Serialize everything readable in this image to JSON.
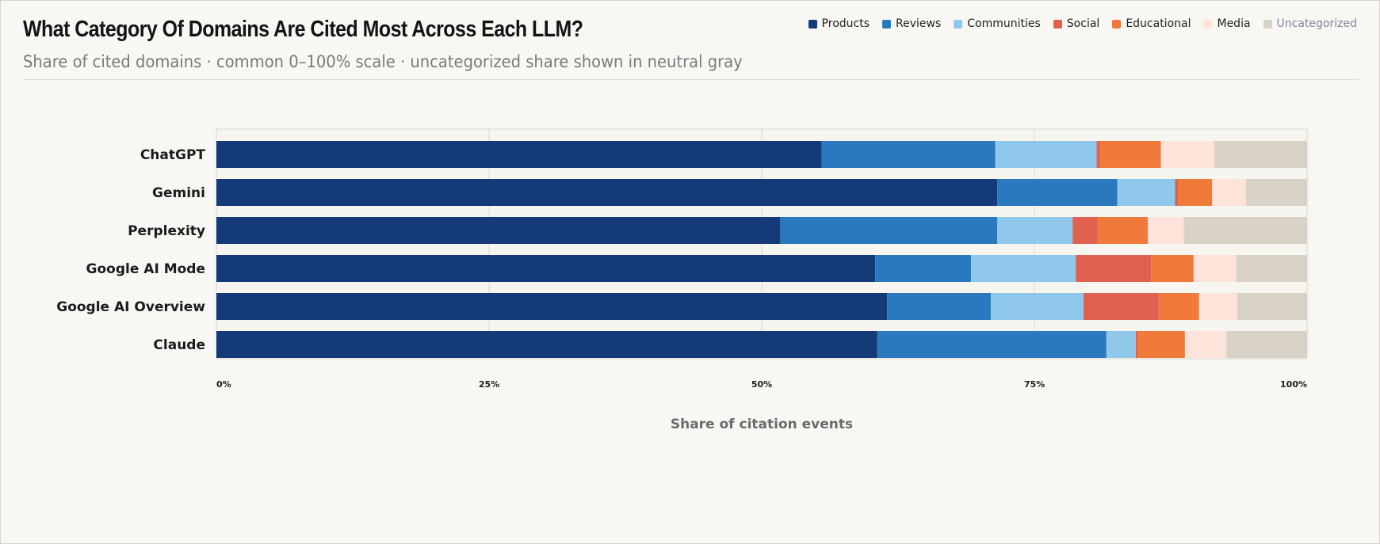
{
  "header": {
    "title": "What Category Of Domains Are Cited Most Across Each LLM?",
    "subtitle": "Share of cited domains · common 0–100% scale · uncategorized share shown in neutral gray"
  },
  "legend": [
    {
      "label": "Products",
      "color": "#143a78"
    },
    {
      "label": "Reviews",
      "color": "#2a78be"
    },
    {
      "label": "Communities",
      "color": "#8fc8ea"
    },
    {
      "label": "Social",
      "color": "#e06150"
    },
    {
      "label": "Educational",
      "color": "#f07a3a"
    },
    {
      "label": "Media",
      "color": "#fde3da"
    },
    {
      "label": "Uncategorized",
      "color": "#d8d3c6"
    }
  ],
  "chart_data": {
    "type": "bar",
    "orientation": "horizontal",
    "stacked": true,
    "title": "What Category Of Domains Are Cited Most Across Each LLM?",
    "subtitle": "Share of cited domains · common 0–100% scale · uncategorized share shown in neutral gray",
    "xlabel": "Share of citation events",
    "ylabel": "",
    "xlim": [
      0,
      100
    ],
    "x_ticks": [
      "0%",
      "25%",
      "50%",
      "75%",
      "100%"
    ],
    "x_tick_values": [
      0,
      25,
      50,
      75,
      100
    ],
    "grid": "vertical",
    "legend_position": "top-right",
    "categories": [
      "ChatGPT",
      "Gemini",
      "Perplexity",
      "Google AI Mode",
      "Google AI Overview",
      "Claude"
    ],
    "series": [
      {
        "name": "Products",
        "color": "#143a78",
        "values": [
          55.5,
          71.6,
          51.7,
          60.4,
          61.5,
          60.6
        ]
      },
      {
        "name": "Reviews",
        "color": "#2a78be",
        "values": [
          15.9,
          11.0,
          19.9,
          8.8,
          9.5,
          21.0
        ]
      },
      {
        "name": "Communities",
        "color": "#8fc8ea",
        "values": [
          9.3,
          5.3,
          6.9,
          9.6,
          8.5,
          2.7
        ]
      },
      {
        "name": "Social",
        "color": "#e06150",
        "values": [
          0.3,
          0.3,
          2.3,
          6.9,
          6.9,
          0.2
        ]
      },
      {
        "name": "Educational",
        "color": "#f07a3a",
        "values": [
          5.6,
          3.1,
          4.6,
          3.9,
          3.7,
          4.3
        ]
      },
      {
        "name": "Media",
        "color": "#fde3da",
        "values": [
          4.9,
          3.1,
          3.3,
          3.9,
          3.5,
          3.8
        ]
      },
      {
        "name": "Uncategorized",
        "color": "#d8d3c6",
        "values": [
          8.5,
          5.6,
          11.3,
          6.5,
          6.4,
          7.4
        ]
      }
    ]
  }
}
